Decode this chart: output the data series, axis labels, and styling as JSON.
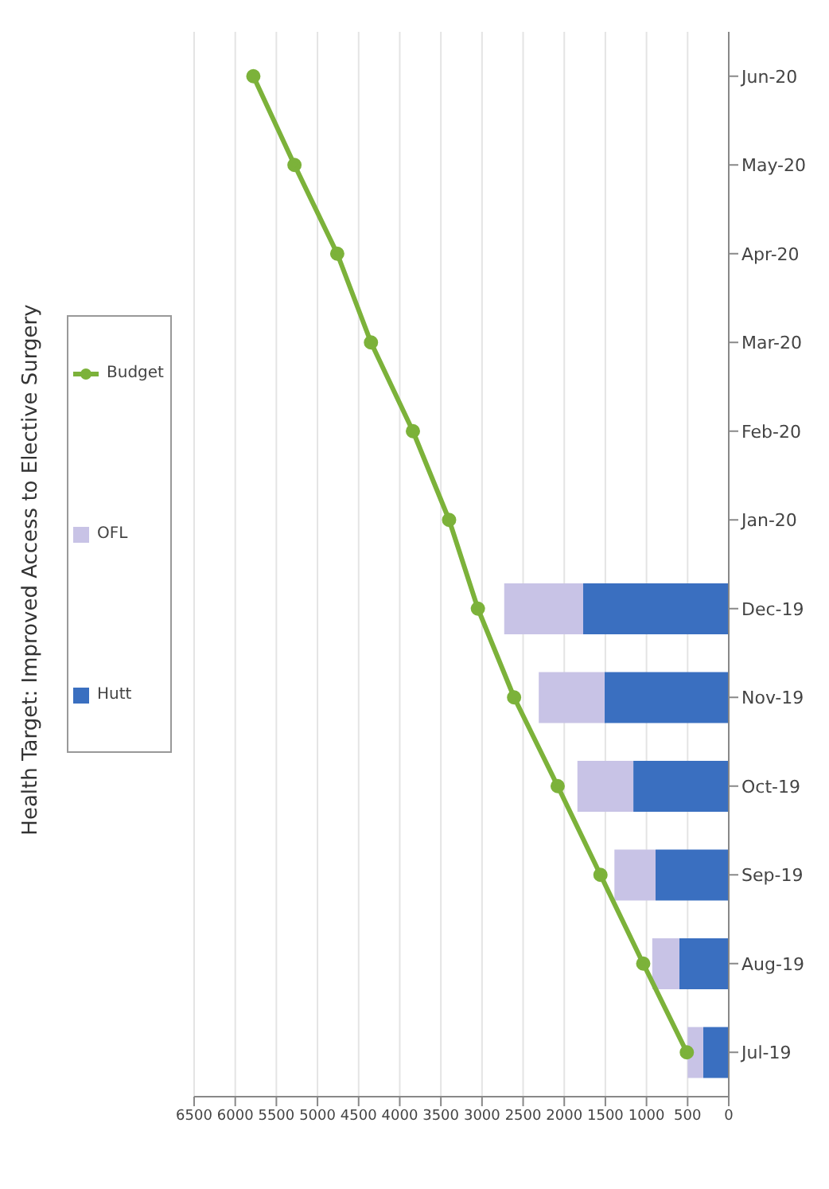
{
  "chart_data": {
    "type": "bar",
    "title": "Health Target:  Improved Access to Elective Surgery",
    "stacked": true,
    "orientation": "horizontal",
    "categories": [
      "Jun-20",
      "May-20",
      "Apr-20",
      "Mar-20",
      "Feb-20",
      "Jan-20",
      "Dec-19",
      "Nov-19",
      "Oct-19",
      "Sep-19",
      "Aug-19",
      "Jul-19"
    ],
    "series": [
      {
        "name": "Hutt",
        "color": "#3a6fc0",
        "values": [
          null,
          null,
          null,
          null,
          null,
          null,
          1770,
          1510,
          1160,
          890,
          600,
          310
        ]
      },
      {
        "name": "OFL",
        "color": "#c8c3e6",
        "values": [
          null,
          null,
          null,
          null,
          null,
          null,
          960,
          800,
          680,
          500,
          330,
          190
        ]
      },
      {
        "name": "Budget",
        "type": "line",
        "color": "#7cb23a",
        "marker": "circle",
        "values": [
          5780,
          5280,
          4760,
          4350,
          3840,
          3400,
          3050,
          2610,
          2080,
          1560,
          1040,
          510
        ]
      }
    ],
    "xlim": [
      6500,
      0
    ],
    "xticks": [
      6500,
      6000,
      5500,
      5000,
      4500,
      4000,
      3500,
      3000,
      2500,
      2000,
      1500,
      1000,
      500,
      0
    ],
    "grid": "x",
    "legend": "left"
  }
}
